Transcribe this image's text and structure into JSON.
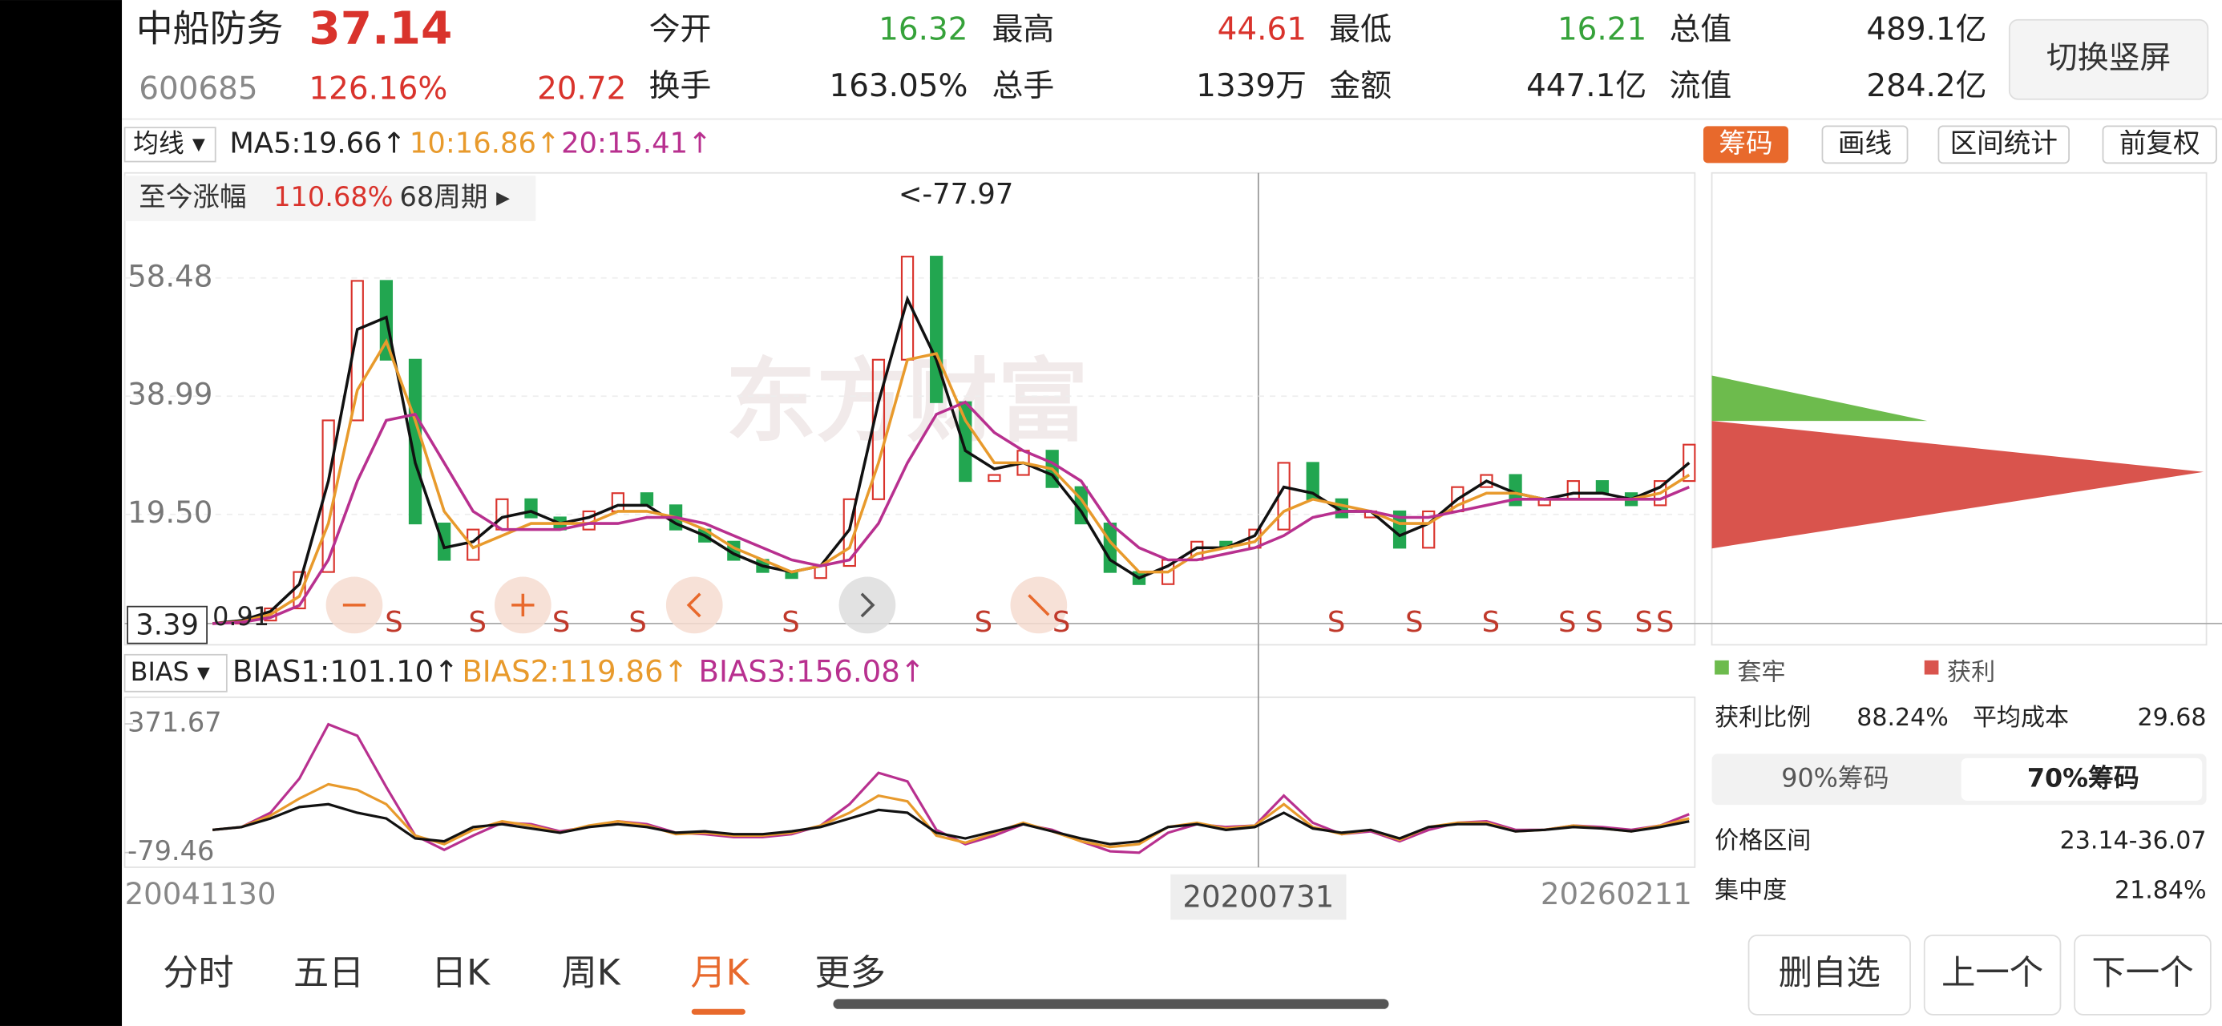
{
  "header": {
    "name": "中船防务",
    "price": "37.14",
    "code": "600685",
    "change_pct": "126.16%",
    "change": "20.72",
    "fields": [
      {
        "label": "今开",
        "value": "16.32"
      },
      {
        "label": "最高",
        "value": "44.61"
      },
      {
        "label": "最低",
        "value": "16.21"
      },
      {
        "label": "总值",
        "value": "489.1亿"
      },
      {
        "label": "换手",
        "value": "163.05%"
      },
      {
        "label": "总手",
        "value": "1339万"
      },
      {
        "label": "金额",
        "value": "447.1亿"
      },
      {
        "label": "流值",
        "value": "284.2亿"
      }
    ],
    "button": "切换竖屏"
  },
  "toolbar": {
    "ma_menu": "均线 ▾",
    "ma5": "MA5:19.66↑",
    "ma10": "10:16.86↑",
    "ma20": "20:15.41↑",
    "tabs": [
      "筹码",
      "画线",
      "区间统计",
      "前复权"
    ]
  },
  "kline": {
    "range_label": "至今涨幅",
    "range_value": "110.68%",
    "periods": "68周期 ▸",
    "max_label": "<-77.97",
    "low_label": "0.91",
    "cursor_price": "3.39",
    "watermark": "东方财富",
    "ylim": [
      -2.0,
      75.8
    ],
    "yticks": [
      58.48,
      38.99,
      {
        "value": 19.5,
        "label": "19.50"
      }
    ],
    "close": [
      1.5,
      2,
      4,
      10,
      35,
      58,
      45,
      18,
      12,
      17,
      22,
      19,
      17,
      20,
      23,
      21,
      17,
      15,
      12,
      10,
      9,
      11,
      22,
      45,
      62,
      38,
      25,
      26,
      30,
      24,
      18,
      10,
      8,
      12,
      15,
      14,
      17,
      28,
      22,
      19,
      20,
      14,
      20,
      24,
      26,
      21,
      22,
      25,
      23,
      21,
      25,
      31
    ],
    "ma5": [
      1.5,
      2,
      3.5,
      8,
      25,
      50,
      52,
      28,
      14,
      15,
      19,
      20,
      18,
      19,
      21,
      21,
      18,
      16,
      13,
      11,
      10,
      11,
      17,
      38,
      55,
      45,
      30,
      27,
      28,
      26,
      20,
      12,
      9,
      11,
      14,
      14,
      16,
      24,
      23,
      20,
      20,
      16,
      18,
      22,
      25,
      23,
      22,
      23,
      23,
      22,
      24,
      28
    ],
    "ma10": [
      1.5,
      1.8,
      3,
      6,
      18,
      40,
      48,
      35,
      20,
      14,
      16,
      18,
      18,
      18,
      20,
      20,
      19,
      17,
      14,
      12,
      10,
      11,
      14,
      28,
      45,
      46,
      35,
      28,
      28,
      27,
      22,
      15,
      10,
      10,
      13,
      14,
      15,
      20,
      22,
      21,
      20,
      18,
      18,
      21,
      23,
      23,
      22,
      22,
      22,
      22,
      23,
      26
    ],
    "ma20": [
      1.5,
      1.7,
      2.5,
      4.5,
      12,
      25,
      35,
      36,
      28,
      20,
      17,
      17,
      17,
      18,
      18,
      19,
      19,
      18,
      16,
      14,
      12,
      11,
      12,
      18,
      28,
      36,
      38,
      33,
      30,
      28,
      25,
      18,
      14,
      12,
      12,
      13,
      14,
      16,
      19,
      20,
      20,
      19,
      19,
      20,
      21,
      22,
      22,
      22,
      22,
      22,
      22,
      24
    ],
    "signals": [
      "S",
      "S",
      "S",
      "S",
      "S",
      "S",
      "S",
      "S",
      "S",
      "S",
      "S",
      "S",
      "S",
      "S"
    ]
  },
  "bias": {
    "menu": "BIAS ▾",
    "bias1_label": "BIAS1:101.10↑",
    "bias2_label": "BIAS2:119.86↑",
    "bias3_label": "BIAS3:156.08↑",
    "ylim": [
      -131,
      465
    ],
    "yticks": [
      371.67,
      -79.46
    ],
    "bias1": [
      0,
      10,
      40,
      80,
      90,
      60,
      40,
      -30,
      -40,
      10,
      20,
      5,
      -10,
      10,
      20,
      10,
      -10,
      -5,
      -15,
      -15,
      -5,
      10,
      40,
      70,
      60,
      -10,
      -30,
      -5,
      20,
      -5,
      -30,
      -50,
      -40,
      10,
      20,
      0,
      10,
      60,
      5,
      -10,
      0,
      -30,
      10,
      20,
      20,
      -5,
      0,
      10,
      5,
      -5,
      10,
      30
    ],
    "bias2": [
      0,
      10,
      50,
      110,
      160,
      140,
      90,
      -20,
      -50,
      0,
      30,
      15,
      -10,
      15,
      30,
      15,
      -15,
      -10,
      -20,
      -20,
      -10,
      15,
      60,
      120,
      100,
      -20,
      -45,
      -10,
      25,
      -5,
      -40,
      -60,
      -50,
      10,
      25,
      5,
      15,
      90,
      10,
      -15,
      0,
      -35,
      10,
      25,
      25,
      -5,
      0,
      15,
      5,
      -5,
      15,
      40
    ],
    "bias3": [
      0,
      10,
      60,
      180,
      370,
      330,
      150,
      -20,
      -70,
      -20,
      25,
      20,
      -5,
      10,
      30,
      20,
      -10,
      -15,
      -25,
      -25,
      -15,
      15,
      90,
      200,
      170,
      0,
      -50,
      -20,
      20,
      0,
      -40,
      -75,
      -80,
      -10,
      20,
      10,
      15,
      120,
      25,
      -15,
      -5,
      -40,
      0,
      25,
      30,
      0,
      0,
      15,
      10,
      0,
      15,
      55
    ]
  },
  "dates": [
    "20041130",
    "20200731",
    "20260211"
  ],
  "chips": {
    "legend": [
      "套牢",
      "获利"
    ],
    "rows": [
      {
        "label": "获利比例",
        "value": "88.24%"
      },
      {
        "label": "平均成本",
        "value": "29.68"
      },
      {
        "label": "价格区间",
        "value": "23.14-36.07"
      },
      {
        "label": "集中度",
        "value": "21.84%"
      }
    ],
    "toggle": [
      "90%筹码",
      "70%筹码"
    ]
  },
  "bottom": {
    "tabs": [
      "分时",
      "五日",
      "日K",
      "周K",
      "月K",
      "更多"
    ],
    "buttons": [
      "删自选",
      "上一个",
      "下一个"
    ]
  }
}
